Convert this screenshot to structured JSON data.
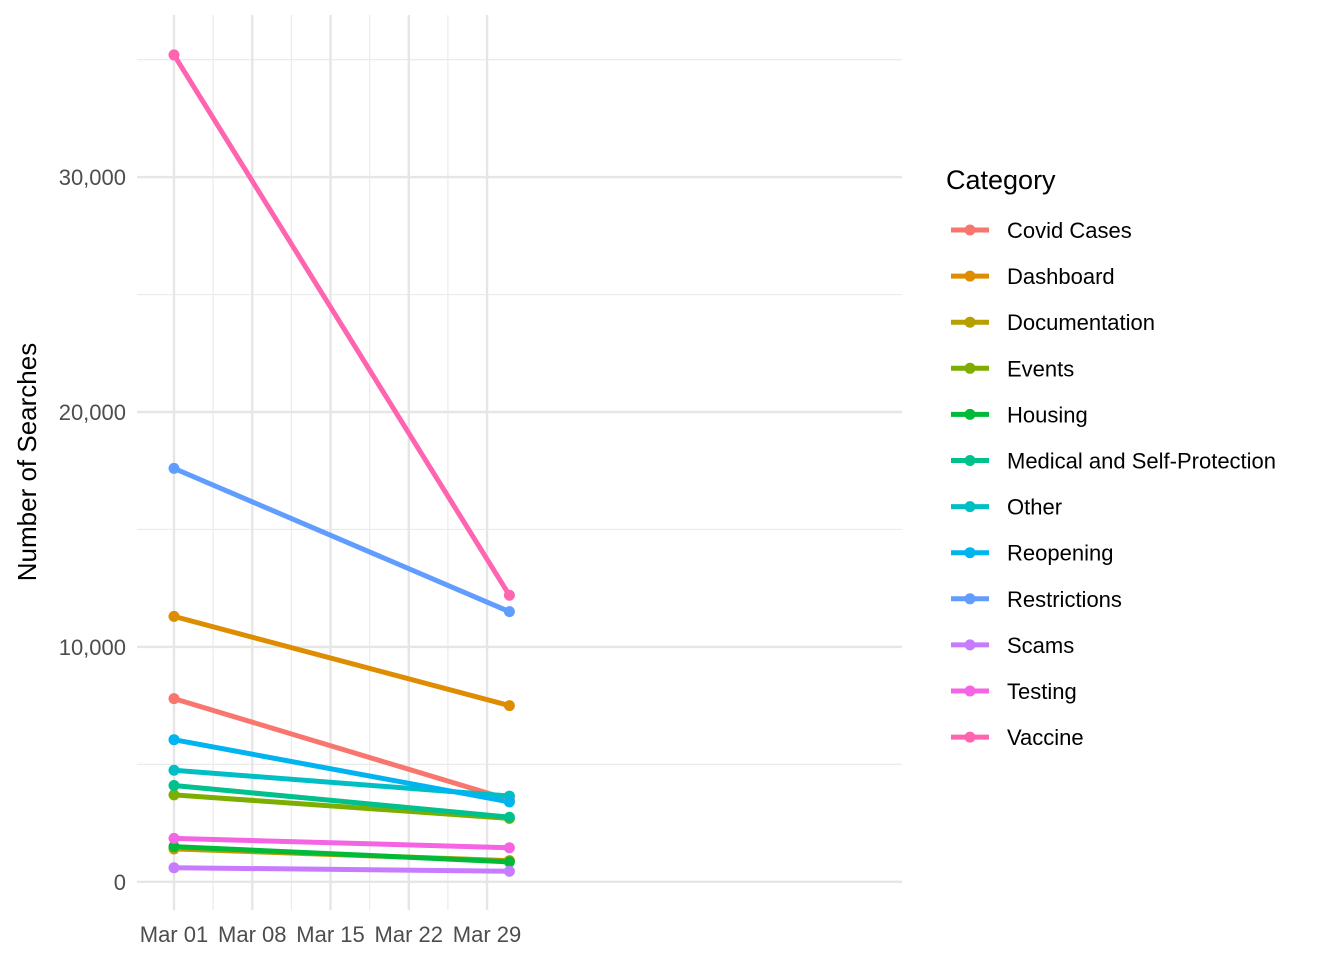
{
  "chart_data": {
    "type": "line",
    "title": "",
    "xlabel": "",
    "ylabel": "Number of Searches",
    "x": [
      "2021-03-01",
      "2021-03-31"
    ],
    "x_ticks": [
      "Mar 01",
      "Mar 08",
      "Mar 15",
      "Mar 22",
      "Mar 29"
    ],
    "y_ticks": [
      "0",
      "10,000",
      "20,000",
      "30,000"
    ],
    "ylim": [
      -1200,
      36900
    ],
    "grid": true,
    "legend_title": "Category",
    "legend_position": "right",
    "series": [
      {
        "name": "Covid Cases",
        "color": "#F8766D",
        "values": [
          7800,
          3500
        ]
      },
      {
        "name": "Dashboard",
        "color": "#DE8C00",
        "values": [
          11300,
          7500
        ]
      },
      {
        "name": "Documentation",
        "color": "#B79F00",
        "values": [
          1400,
          900
        ]
      },
      {
        "name": "Events",
        "color": "#7CAE00",
        "values": [
          3700,
          2700
        ]
      },
      {
        "name": "Housing",
        "color": "#00BA38",
        "values": [
          1500,
          850
        ]
      },
      {
        "name": "Medical and Self-Protection",
        "color": "#00C08B",
        "values": [
          4100,
          2750
        ]
      },
      {
        "name": "Other",
        "color": "#00BFC4",
        "values": [
          4750,
          3650
        ]
      },
      {
        "name": "Reopening",
        "color": "#00B4F0",
        "values": [
          6050,
          3400
        ]
      },
      {
        "name": "Restrictions",
        "color": "#619CFF",
        "values": [
          17600,
          11500
        ]
      },
      {
        "name": "Scams",
        "color": "#C77CFF",
        "values": [
          600,
          450
        ]
      },
      {
        "name": "Testing",
        "color": "#F564E3",
        "values": [
          1850,
          1450
        ]
      },
      {
        "name": "Vaccine",
        "color": "#FF64B0",
        "values": [
          35200,
          12200
        ]
      }
    ]
  }
}
